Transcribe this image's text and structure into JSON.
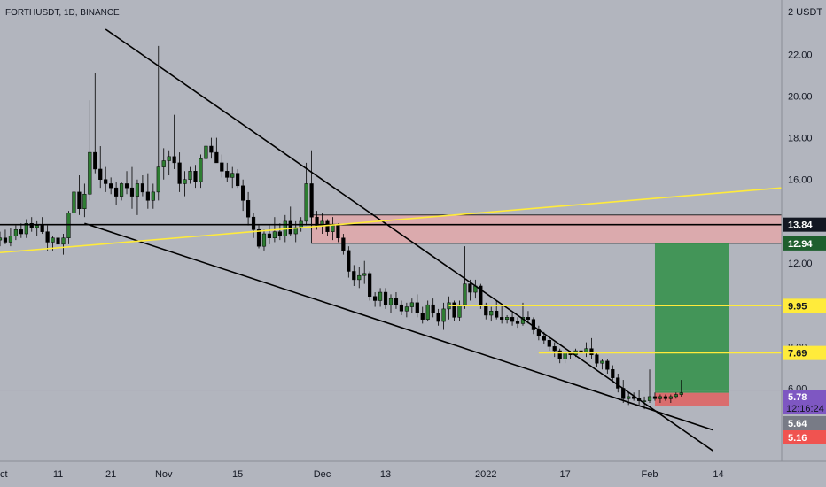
{
  "header": {
    "symbol_line": "FORTHUSDT, 1D, BINANCE"
  },
  "chart_data": {
    "type": "candlestick",
    "symbol": "FORTHUSDT",
    "interval": "1D",
    "exchange": "BINANCE",
    "currency_label": "2 USDT",
    "y_range": [
      2.5,
      24.6
    ],
    "x_range": [
      0,
      108
    ],
    "y_ticks": [
      {
        "value": 22,
        "label": "22.00"
      },
      {
        "value": 20,
        "label": "20.00"
      },
      {
        "value": 18,
        "label": "18.00"
      },
      {
        "value": 16,
        "label": "16.00"
      },
      {
        "value": 12,
        "label": "12.00"
      },
      {
        "value": 8,
        "label": "8.00"
      },
      {
        "value": 6,
        "label": "6.00"
      }
    ],
    "x_ticks": [
      {
        "day": 0,
        "label": "Oct"
      },
      {
        "day": 11,
        "label": "11"
      },
      {
        "day": 21,
        "label": "21"
      },
      {
        "day": 31,
        "label": "Nov"
      },
      {
        "day": 45,
        "label": "15"
      },
      {
        "day": 61,
        "label": "Dec"
      },
      {
        "day": 73,
        "label": "13"
      },
      {
        "day": 92,
        "label": "2022"
      },
      {
        "day": 107,
        "label": "17"
      },
      {
        "day": 123,
        "label": "Feb"
      },
      {
        "day": 136,
        "label": "14"
      }
    ],
    "x_ticks_note": "",
    "day_range": [
      0,
      148
    ],
    "candles": [
      [
        13.1,
        13.5,
        12.8,
        13.2
      ],
      [
        13.2,
        13.6,
        12.9,
        13.0
      ],
      [
        13.0,
        13.7,
        12.8,
        13.3
      ],
      [
        13.3,
        13.8,
        13.1,
        13.6
      ],
      [
        13.6,
        13.9,
        13.2,
        13.4
      ],
      [
        13.4,
        14.1,
        13.2,
        13.9
      ],
      [
        13.9,
        14.2,
        13.5,
        13.7
      ],
      [
        13.7,
        14.0,
        13.3,
        13.8
      ],
      [
        13.8,
        14.2,
        13.4,
        13.5
      ],
      [
        13.5,
        13.8,
        12.6,
        13.0
      ],
      [
        13.0,
        13.3,
        12.6,
        13.2
      ],
      [
        13.2,
        13.9,
        12.2,
        12.9
      ],
      [
        12.9,
        13.4,
        12.4,
        13.2
      ],
      [
        13.2,
        14.5,
        12.9,
        14.4
      ],
      [
        14.4,
        21.4,
        14.0,
        15.4
      ],
      [
        15.4,
        16.2,
        14.3,
        14.6
      ],
      [
        14.6,
        15.8,
        14.2,
        15.3
      ],
      [
        15.3,
        19.8,
        15.0,
        17.3
      ],
      [
        17.3,
        21.1,
        16.3,
        16.5
      ],
      [
        16.5,
        17.6,
        15.6,
        16.0
      ],
      [
        16.0,
        16.6,
        15.4,
        15.8
      ],
      [
        15.8,
        16.1,
        15.3,
        15.6
      ],
      [
        15.6,
        15.9,
        14.8,
        15.2
      ],
      [
        15.2,
        15.9,
        15.0,
        15.8
      ],
      [
        15.8,
        16.4,
        15.3,
        15.6
      ],
      [
        15.6,
        16.6,
        14.6,
        15.2
      ],
      [
        15.2,
        16.0,
        14.3,
        15.8
      ],
      [
        15.8,
        16.2,
        15.2,
        15.4
      ],
      [
        15.4,
        16.3,
        14.6,
        15.0
      ],
      [
        15.0,
        15.8,
        14.6,
        15.4
      ],
      [
        15.4,
        22.4,
        15.0,
        16.6
      ],
      [
        16.6,
        17.5,
        16.0,
        16.9
      ],
      [
        16.9,
        17.4,
        16.2,
        17.1
      ],
      [
        17.1,
        19.1,
        16.5,
        16.8
      ],
      [
        16.8,
        17.3,
        15.4,
        15.8
      ],
      [
        15.8,
        16.4,
        15.2,
        16.0
      ],
      [
        16.0,
        16.6,
        15.8,
        16.4
      ],
      [
        16.4,
        16.7,
        15.6,
        15.9
      ],
      [
        15.9,
        17.2,
        15.6,
        17.0
      ],
      [
        17.0,
        17.9,
        16.6,
        17.6
      ],
      [
        17.6,
        18.0,
        17.0,
        17.3
      ],
      [
        17.3,
        18.0,
        16.8,
        16.8
      ],
      [
        16.8,
        17.2,
        16.1,
        16.4
      ],
      [
        16.4,
        16.8,
        15.9,
        16.1
      ],
      [
        16.1,
        16.6,
        15.6,
        16.3
      ],
      [
        16.3,
        16.5,
        15.6,
        15.7
      ],
      [
        15.7,
        16.0,
        14.5,
        15.0
      ],
      [
        15.0,
        15.4,
        13.8,
        14.2
      ],
      [
        14.2,
        14.4,
        13.2,
        13.6
      ],
      [
        13.6,
        13.8,
        12.7,
        12.8
      ],
      [
        12.8,
        13.6,
        12.6,
        13.4
      ],
      [
        13.4,
        13.8,
        12.9,
        13.2
      ],
      [
        13.2,
        14.2,
        13.0,
        13.5
      ],
      [
        13.5,
        13.9,
        13.1,
        13.3
      ],
      [
        13.3,
        14.3,
        13.0,
        14.0
      ],
      [
        14.0,
        14.7,
        13.3,
        13.4
      ],
      [
        13.4,
        14.0,
        13.0,
        13.7
      ],
      [
        13.7,
        14.2,
        13.5,
        14.0
      ],
      [
        14.0,
        16.8,
        13.8,
        15.8
      ],
      [
        15.8,
        17.4,
        13.6,
        14.2
      ],
      [
        14.2,
        14.5,
        13.6,
        13.8
      ],
      [
        13.8,
        14.4,
        13.4,
        14.0
      ],
      [
        14.0,
        14.1,
        13.3,
        13.5
      ],
      [
        13.5,
        14.2,
        13.1,
        13.8
      ],
      [
        13.8,
        13.9,
        13.0,
        13.2
      ],
      [
        13.2,
        13.4,
        12.4,
        12.6
      ],
      [
        12.6,
        12.8,
        11.3,
        11.6
      ],
      [
        11.6,
        11.9,
        10.9,
        11.2
      ],
      [
        11.2,
        11.8,
        10.8,
        11.4
      ],
      [
        11.4,
        12.1,
        11.0,
        11.5
      ],
      [
        11.5,
        11.6,
        10.2,
        10.4
      ],
      [
        10.4,
        10.6,
        9.9,
        10.2
      ],
      [
        10.2,
        10.8,
        9.9,
        10.6
      ],
      [
        10.6,
        10.8,
        9.8,
        10.0
      ],
      [
        10.0,
        10.5,
        9.6,
        10.3
      ],
      [
        10.3,
        10.6,
        9.8,
        10.0
      ],
      [
        10.0,
        10.2,
        9.5,
        9.7
      ],
      [
        9.7,
        10.1,
        9.4,
        9.9
      ],
      [
        9.9,
        10.3,
        9.6,
        10.1
      ],
      [
        10.1,
        10.5,
        9.4,
        9.6
      ],
      [
        9.6,
        9.9,
        9.1,
        9.3
      ],
      [
        9.3,
        10.2,
        9.2,
        10.0
      ],
      [
        10.0,
        10.3,
        9.4,
        9.6
      ],
      [
        9.6,
        9.8,
        9.0,
        9.2
      ],
      [
        9.2,
        10.1,
        8.8,
        9.8
      ],
      [
        9.8,
        10.4,
        9.3,
        10.1
      ],
      [
        10.1,
        10.2,
        9.2,
        9.4
      ],
      [
        9.4,
        10.2,
        9.2,
        10.0
      ],
      [
        10.0,
        12.8,
        9.8,
        11.0
      ],
      [
        11.0,
        11.2,
        10.2,
        10.6
      ],
      [
        10.6,
        11.2,
        10.3,
        10.9
      ],
      [
        10.9,
        11.0,
        9.8,
        10.0
      ],
      [
        10.0,
        10.1,
        9.3,
        9.5
      ],
      [
        9.5,
        9.9,
        9.2,
        9.7
      ],
      [
        9.7,
        10.2,
        9.3,
        9.4
      ],
      [
        9.4,
        10.0,
        9.1,
        9.3
      ],
      [
        9.3,
        9.5,
        9.1,
        9.4
      ],
      [
        9.4,
        9.6,
        9.0,
        9.2
      ],
      [
        9.2,
        9.4,
        8.9,
        9.1
      ],
      [
        9.1,
        10.1,
        9.0,
        9.4
      ],
      [
        9.4,
        9.7,
        9.1,
        9.3
      ],
      [
        9.3,
        9.4,
        8.6,
        8.8
      ],
      [
        8.8,
        9.0,
        8.3,
        8.5
      ],
      [
        8.5,
        8.7,
        8.1,
        8.3
      ],
      [
        8.3,
        8.5,
        7.8,
        8.0
      ],
      [
        8.0,
        8.2,
        7.5,
        7.8
      ],
      [
        7.8,
        7.9,
        7.2,
        7.4
      ],
      [
        7.4,
        7.8,
        7.2,
        7.7
      ],
      [
        7.7,
        7.8,
        7.4,
        7.6
      ],
      [
        7.6,
        7.9,
        7.5,
        7.8
      ],
      [
        7.8,
        8.7,
        7.6,
        7.7
      ],
      [
        7.7,
        8.2,
        7.5,
        7.9
      ],
      [
        7.9,
        8.4,
        7.4,
        7.6
      ],
      [
        7.6,
        7.7,
        7.0,
        7.2
      ],
      [
        7.2,
        7.4,
        6.9,
        7.3
      ],
      [
        7.3,
        7.4,
        6.7,
        6.9
      ],
      [
        6.9,
        7.1,
        6.3,
        6.5
      ],
      [
        6.5,
        6.7,
        5.8,
        6.0
      ],
      [
        6.0,
        6.4,
        5.3,
        5.5
      ],
      [
        5.5,
        5.8,
        5.2,
        5.6
      ],
      [
        5.6,
        5.8,
        5.4,
        5.5
      ],
      [
        5.5,
        5.9,
        5.2,
        5.4
      ],
      [
        5.4,
        5.6,
        5.0,
        5.4
      ],
      [
        5.4,
        6.9,
        5.3,
        5.6
      ],
      [
        5.6,
        5.8,
        5.4,
        5.5
      ],
      [
        5.5,
        5.7,
        5.3,
        5.6
      ],
      [
        5.6,
        5.7,
        5.4,
        5.5
      ],
      [
        5.5,
        5.7,
        5.3,
        5.6
      ],
      [
        5.6,
        5.8,
        5.5,
        5.7
      ],
      [
        5.7,
        6.4,
        5.6,
        5.78
      ]
    ],
    "candles_start_day": 0,
    "lines": [
      {
        "kind": "trendline",
        "color": "#000000",
        "from": [
          20,
          23.2
        ],
        "to": [
          125,
          4.7
        ],
        "extend_to": [
          135,
          3.0
        ]
      },
      {
        "kind": "trendline",
        "color": "#000000",
        "from": [
          16,
          13.9
        ],
        "to": [
          135,
          4.0
        ]
      },
      {
        "kind": "horizontal",
        "color": "#000000",
        "value": 13.84,
        "from_day": 0
      },
      {
        "kind": "trendline",
        "color": "#ffeb3b",
        "from": [
          0,
          12.5
        ],
        "to": [
          148,
          15.6
        ]
      },
      {
        "kind": "horizontal",
        "color": "#ffeb3b",
        "value": 9.95,
        "from_day": 85
      },
      {
        "kind": "horizontal",
        "color": "#ffeb3b",
        "value": 7.69,
        "from_day": 102
      }
    ],
    "zones": [
      {
        "kind": "resistance",
        "color": "#e8a7a7",
        "top": 14.3,
        "bottom": 12.94,
        "from_day": 59,
        "to_day": 148
      },
      {
        "kind": "target",
        "color": "#2f8f47",
        "top": 12.94,
        "bottom": 5.78,
        "from_day": 124,
        "to_day": 138
      },
      {
        "kind": "stop",
        "color": "#e06060",
        "top": 5.78,
        "bottom": 5.16,
        "from_day": 124,
        "to_day": 138
      }
    ],
    "price_labels": [
      {
        "value": 13.84,
        "text": "13.84",
        "bg": "#131722",
        "fg": "#ffffff"
      },
      {
        "value": 12.94,
        "text": "12.94",
        "bg": "#1e5f2e",
        "fg": "#ffffff"
      },
      {
        "value": 9.95,
        "text": "9.95",
        "bg": "#ffeb3b",
        "fg": "#131722"
      },
      {
        "value": 7.69,
        "text": "7.69",
        "bg": "#ffeb3b",
        "fg": "#131722"
      },
      {
        "value": 5.78,
        "text": "5.78",
        "sub": "12:16:24",
        "bg": "#7e57c2",
        "fg": "#ffffff"
      },
      {
        "value": 5.64,
        "text": "5.64",
        "bg": "#787b86",
        "fg": "#ffffff"
      },
      {
        "value": 5.16,
        "text": "5.16",
        "bg": "#f05350",
        "fg": "#ffffff"
      }
    ],
    "colors": {
      "up": "#2e7d32",
      "down": "#000000",
      "wick": "#000000",
      "bg": "#b2b5be"
    }
  }
}
